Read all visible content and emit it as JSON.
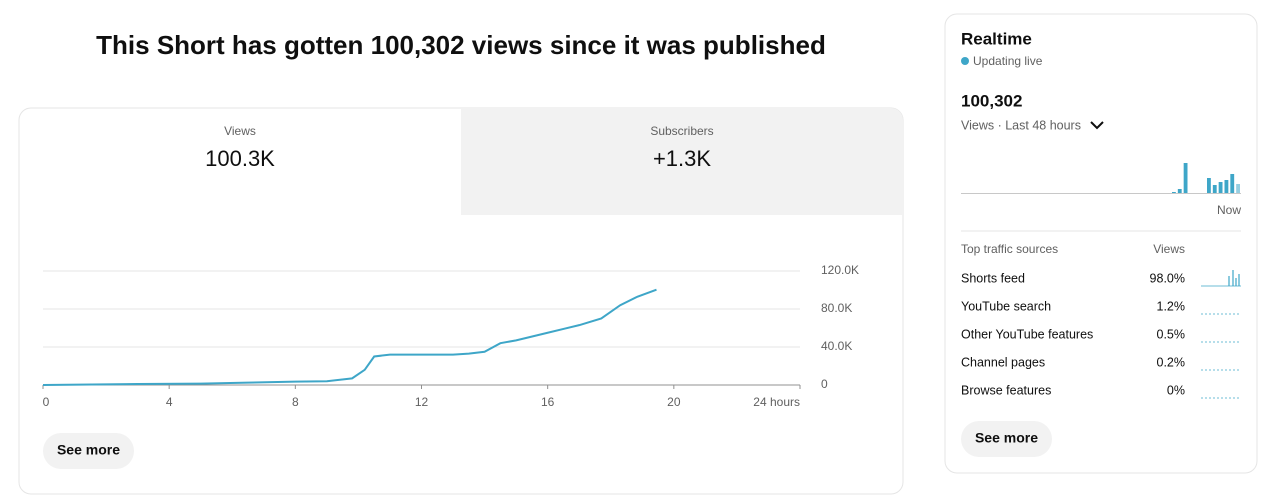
{
  "header": {
    "title": "This Short has gotten 100,302 views since it was published"
  },
  "tabs": [
    {
      "label": "Views",
      "value": "100.3K"
    },
    {
      "label": "Subscribers",
      "value": "+1.3K"
    }
  ],
  "chart": {
    "type": "line",
    "color": "#3ea6c8",
    "x": [
      0,
      3,
      5,
      6.5,
      8,
      9,
      9.8,
      10.2,
      10.5,
      11,
      13,
      13.5,
      14,
      14.5,
      15,
      16,
      16.5,
      17,
      17.7,
      18.3,
      18.85,
      19.45
    ],
    "values": [
      0,
      1000,
      1500,
      2500,
      3500,
      4000,
      7000,
      16000,
      30000,
      32000,
      32000,
      33000,
      35000,
      44000,
      47000,
      55000,
      59000,
      63000,
      70000,
      84000,
      93000,
      100300
    ],
    "xlim": [
      0,
      24
    ],
    "xticks": [
      0,
      4,
      8,
      12,
      16,
      20,
      {
        "value": 24,
        "label": "24 hours"
      }
    ],
    "ylim": [
      0,
      120000
    ],
    "yticks": [
      0,
      {
        "value": 40000,
        "label": "40.0K"
      },
      {
        "value": 80000,
        "label": "80.0K"
      },
      {
        "value": 120000,
        "label": "120.0K"
      }
    ],
    "grid": true
  },
  "see_more": "See more",
  "realtime": {
    "title": "Realtime",
    "status": "Updating live",
    "total": "100,302",
    "period": "Views · Last 48 hours",
    "chart": {
      "type": "bar",
      "color": "#3ea6c8",
      "values": [
        0,
        0,
        0,
        0,
        0,
        0,
        0,
        0,
        0,
        0,
        0,
        0,
        0,
        0,
        0,
        0,
        0,
        0,
        0,
        0,
        0,
        0,
        0,
        0,
        0,
        0,
        0,
        0,
        0,
        0,
        0,
        0,
        0,
        0,
        0,
        0,
        1,
        4,
        30,
        0,
        0,
        0,
        15,
        8,
        11,
        13,
        19,
        9
      ],
      "now_label": "Now"
    },
    "sources_header": "Top traffic sources",
    "sources_metric": "Views",
    "sources": [
      {
        "name": "Shorts feed",
        "share": "98.0%"
      },
      {
        "name": "YouTube search",
        "share": "1.2%"
      },
      {
        "name": "Other YouTube features",
        "share": "0.5%"
      },
      {
        "name": "Channel pages",
        "share": "0.2%"
      },
      {
        "name": "Browse features",
        "share": "0%"
      }
    ],
    "see_more": "See more"
  }
}
